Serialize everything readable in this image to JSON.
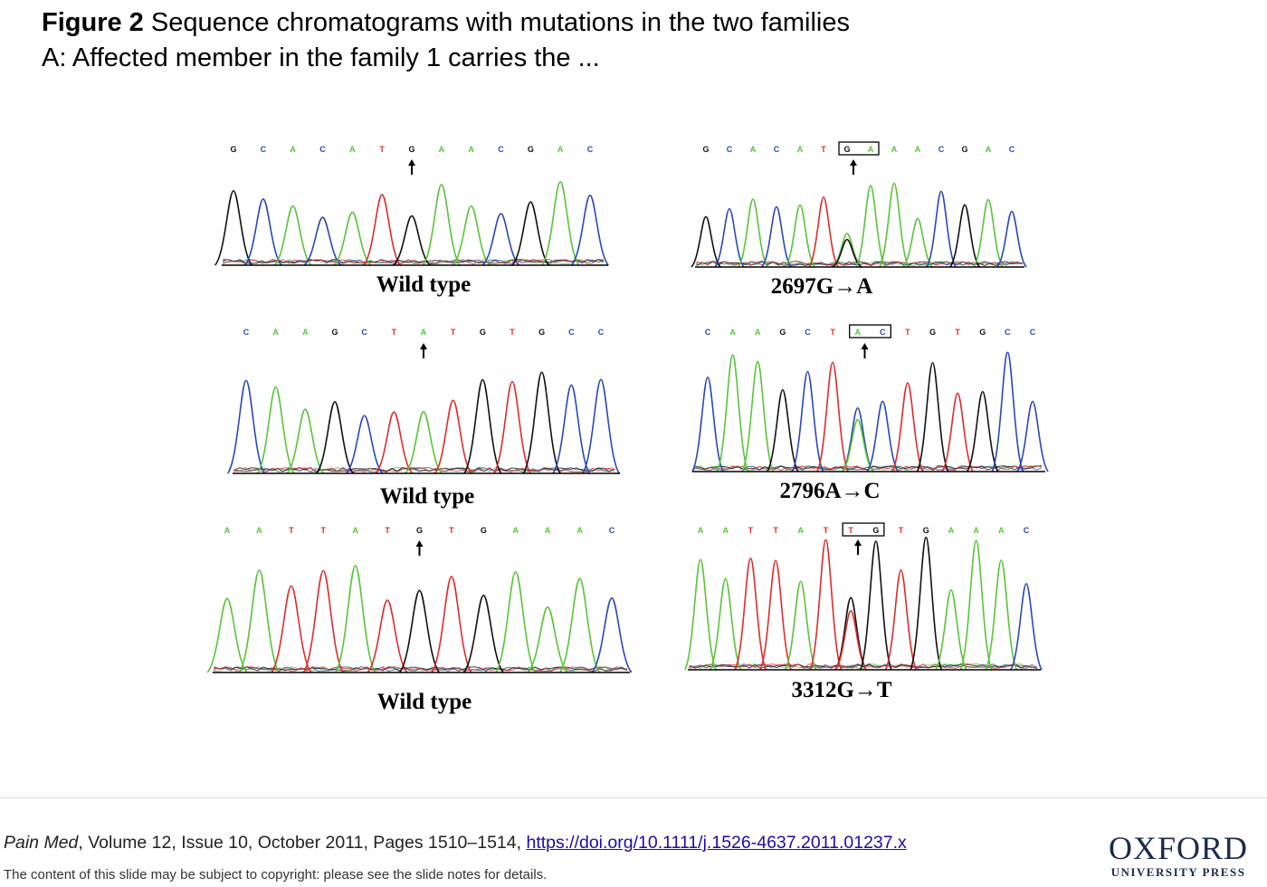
{
  "caption": {
    "bold": "Figure 2",
    "text": " Sequence chromatograms with mutations in the two families A: Affected member in the family 1 carries the ..."
  },
  "base_colors": {
    "A": "#58c43a",
    "C": "#2a48b8",
    "G": "#111111",
    "T": "#e02b2b"
  },
  "panels": [
    {
      "label": "Wild type",
      "bases": "GCACATGAACGAC",
      "arrow_index": 6,
      "boxed": null,
      "mixed": null
    },
    {
      "label": "2697G→A",
      "bases": "GCACATGAAACGAC",
      "arrow_index": 6,
      "boxed": [
        6,
        7
      ],
      "mixed": {
        "index": 6,
        "secondary": "A"
      }
    },
    {
      "label": "Wild type",
      "bases": "CAAGCTATGTGCC",
      "arrow_index": 6,
      "boxed": null,
      "mixed": null
    },
    {
      "label": "2796A→C",
      "bases": "CAAGCTACTGTGCC",
      "arrow_index": 6,
      "boxed": [
        6,
        7
      ],
      "mixed": {
        "index": 6,
        "secondary": "C"
      }
    },
    {
      "label": "Wild type",
      "bases": "AATTATGTGAAAC",
      "arrow_index": 6,
      "boxed": null,
      "mixed": null
    },
    {
      "label": "3312G→T",
      "bases": "AATTATTGTGAAAC",
      "arrow_index": 6,
      "boxed": [
        6,
        7
      ],
      "mixed": {
        "index": 6,
        "secondary": "G"
      }
    }
  ],
  "footer": {
    "journal": "Pain Med",
    "details": ", Volume 12, Issue 10, October 2011, Pages 1510–1514, ",
    "doi_text": "https://doi.org/10.1111/j.1526-4637.2011.01237.x",
    "copyright": "The content of this slide may be subject to copyright: please see the slide notes for details."
  },
  "logo": {
    "main": "OXFORD",
    "sub": "UNIVERSITY PRESS"
  }
}
